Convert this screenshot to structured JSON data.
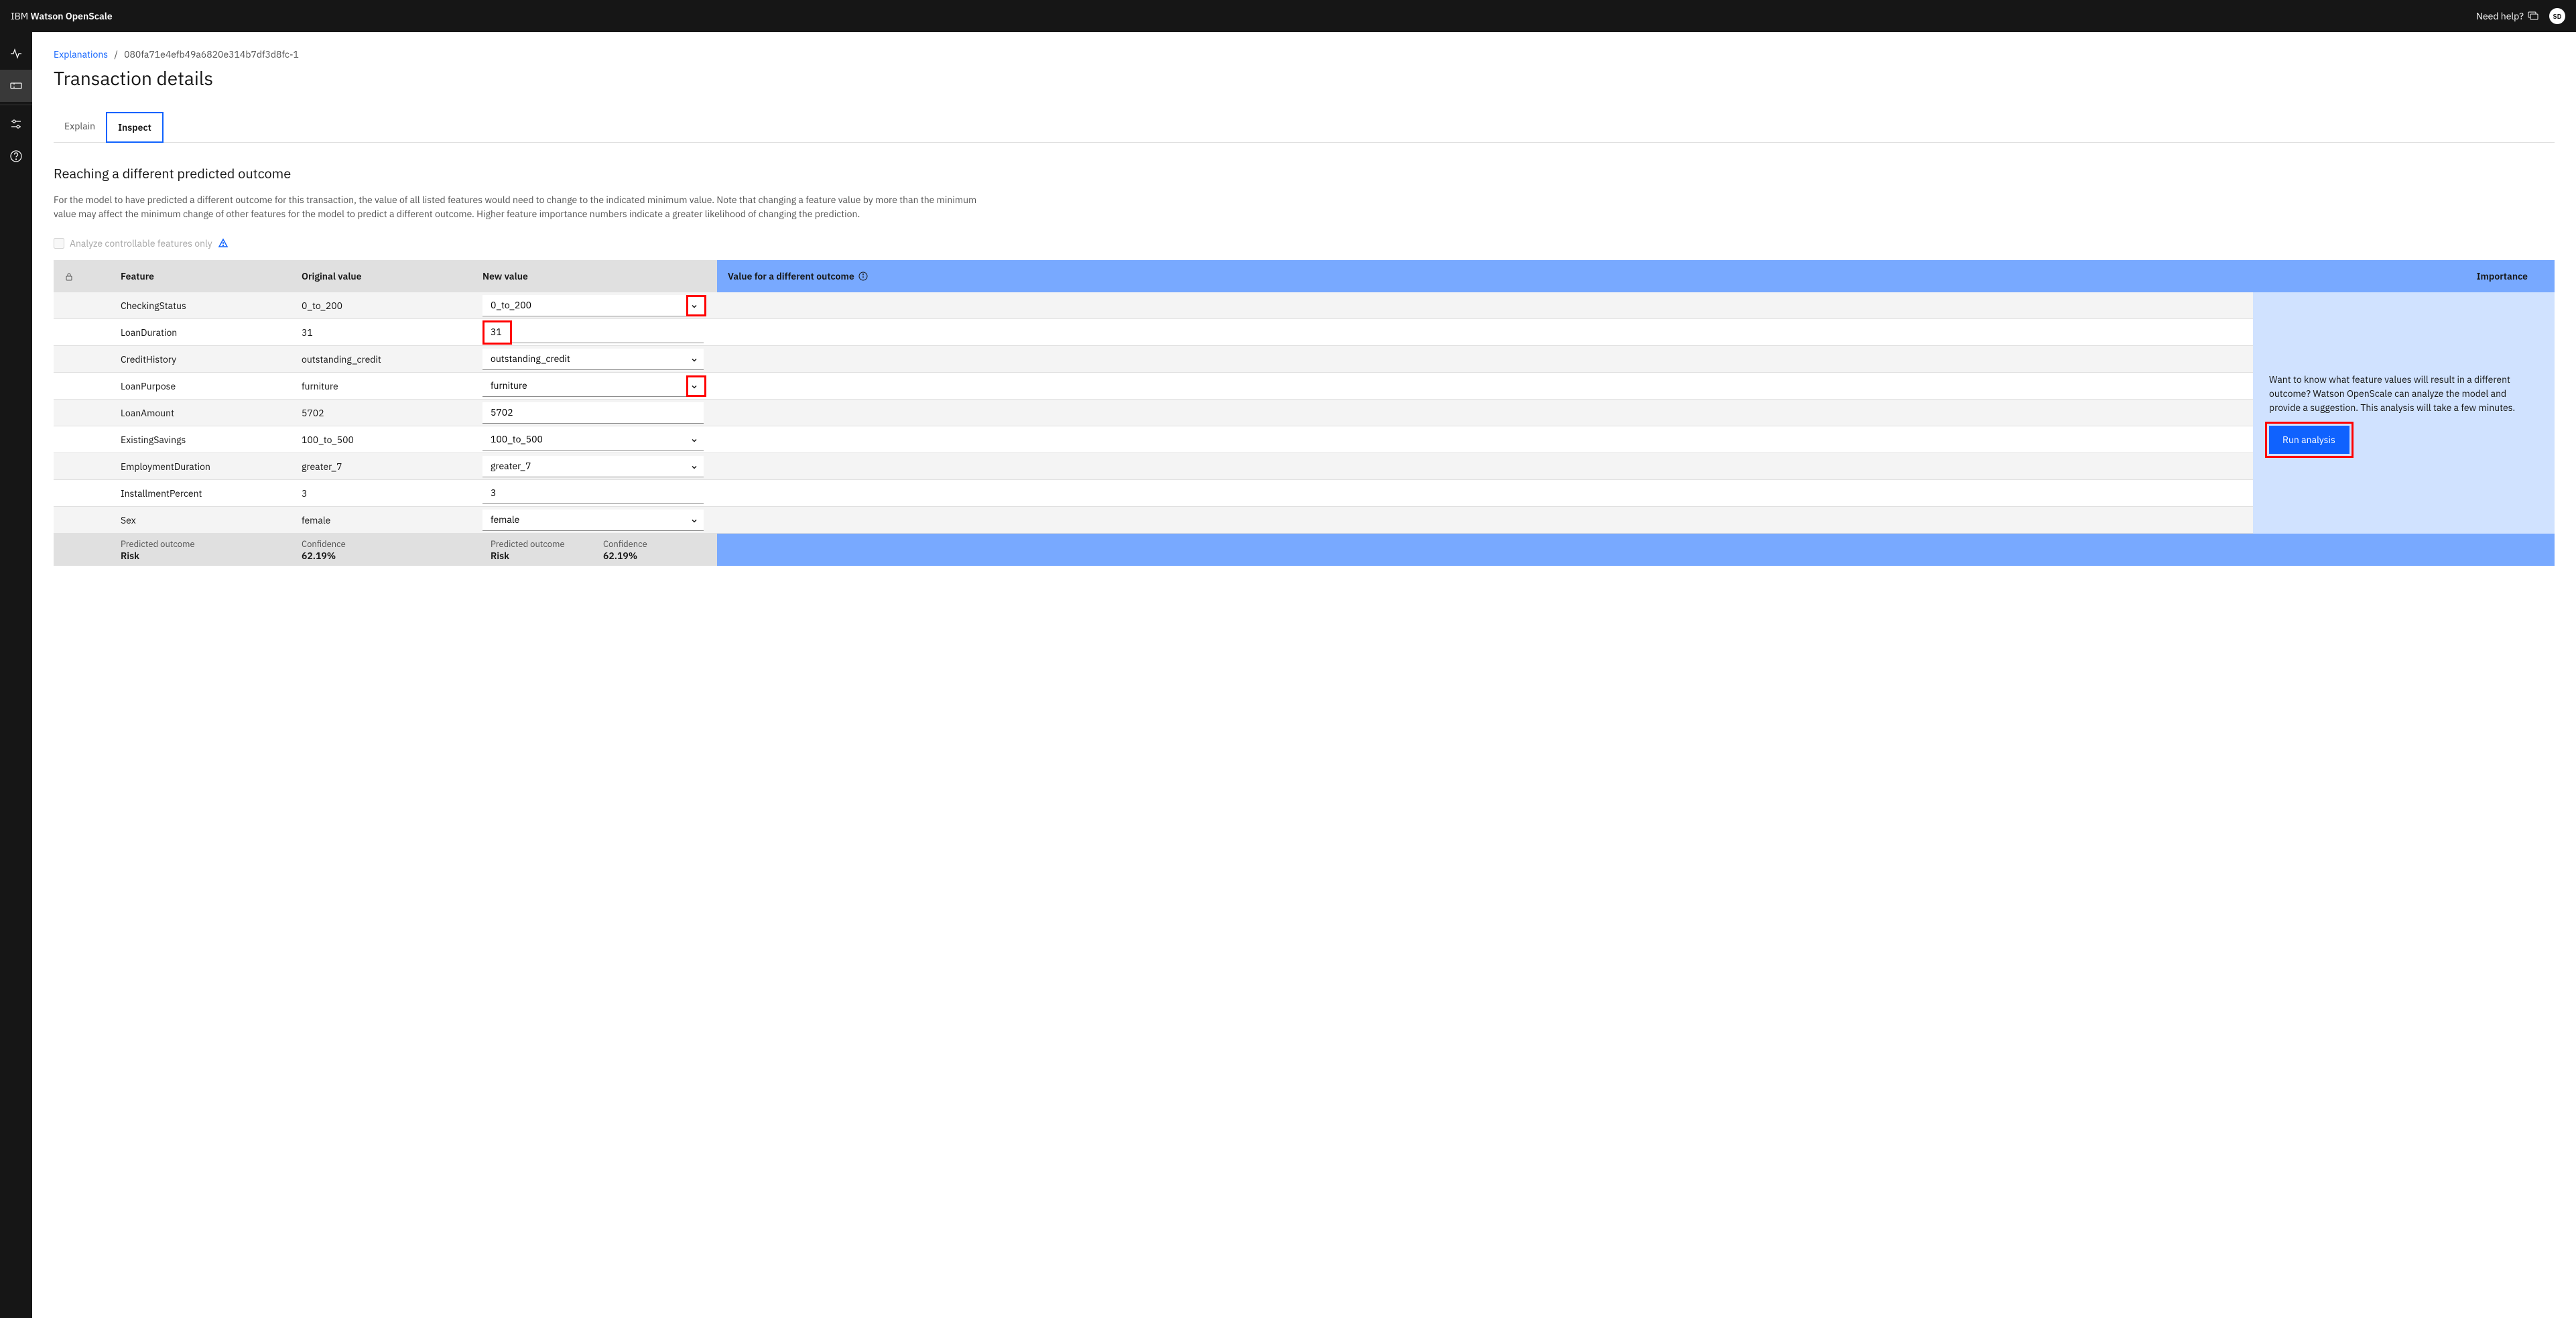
{
  "header": {
    "product_prefix": "IBM",
    "product_name": "Watson OpenScale",
    "help_label": "Need help?",
    "avatar_initials": "SD"
  },
  "breadcrumb": {
    "link_label": "Explanations",
    "current": "080fa71e4efb49a6820e314b7df3d8fc-1"
  },
  "page_title": "Transaction details",
  "tabs": {
    "explain": "Explain",
    "inspect": "Inspect"
  },
  "section": {
    "title": "Reaching a different predicted outcome",
    "desc": "For the model to have predicted a different outcome for this transaction, the value of all listed features would need to change to the indicated minimum value. Note that changing a feature value by more than the minimum value may affect the minimum change of other features for the model to predict a different outcome. Higher feature importance numbers indicate a greater likelihood of changing the prediction.",
    "checkbox_label": "Analyze controllable features only"
  },
  "table": {
    "headers": {
      "feature": "Feature",
      "original": "Original value",
      "newvalue": "New value",
      "outcome": "Value for a different outcome",
      "importance": "Importance"
    },
    "rows": [
      {
        "feature": "CheckingStatus",
        "original": "0_to_200",
        "newvalue": "0_to_200",
        "type": "select",
        "highlight_chev": true
      },
      {
        "feature": "LoanDuration",
        "original": "31",
        "newvalue": "31",
        "type": "input",
        "highlight_val": true
      },
      {
        "feature": "CreditHistory",
        "original": "outstanding_credit",
        "newvalue": "outstanding_credit",
        "type": "select"
      },
      {
        "feature": "LoanPurpose",
        "original": "furniture",
        "newvalue": "furniture",
        "type": "select",
        "highlight_chev": true
      },
      {
        "feature": "LoanAmount",
        "original": "5702",
        "newvalue": "5702",
        "type": "input"
      },
      {
        "feature": "ExistingSavings",
        "original": "100_to_500",
        "newvalue": "100_to_500",
        "type": "select"
      },
      {
        "feature": "EmploymentDuration",
        "original": "greater_7",
        "newvalue": "greater_7",
        "type": "select"
      },
      {
        "feature": "InstallmentPercent",
        "original": "3",
        "newvalue": "3",
        "type": "input"
      },
      {
        "feature": "Sex",
        "original": "female",
        "newvalue": "female",
        "type": "select"
      }
    ],
    "footer": {
      "pred_label": "Predicted outcome",
      "pred_value": "Risk",
      "conf_label": "Confidence",
      "conf_value": "62.19%",
      "pred2_label": "Predicted outcome",
      "pred2_value": "Risk",
      "conf2_label": "Confidence",
      "conf2_value": "62.19%"
    }
  },
  "outcome_panel": {
    "text": "Want to know what feature values will result in a different outcome? Watson OpenScale can analyze the model and provide a suggestion. This analysis will take a few minutes.",
    "button": "Run analysis"
  },
  "colors": {
    "primary": "#0f62fe",
    "highlight": "#ff0000",
    "panel_bg": "#d0e2ff",
    "panel_header": "#78a9ff"
  }
}
